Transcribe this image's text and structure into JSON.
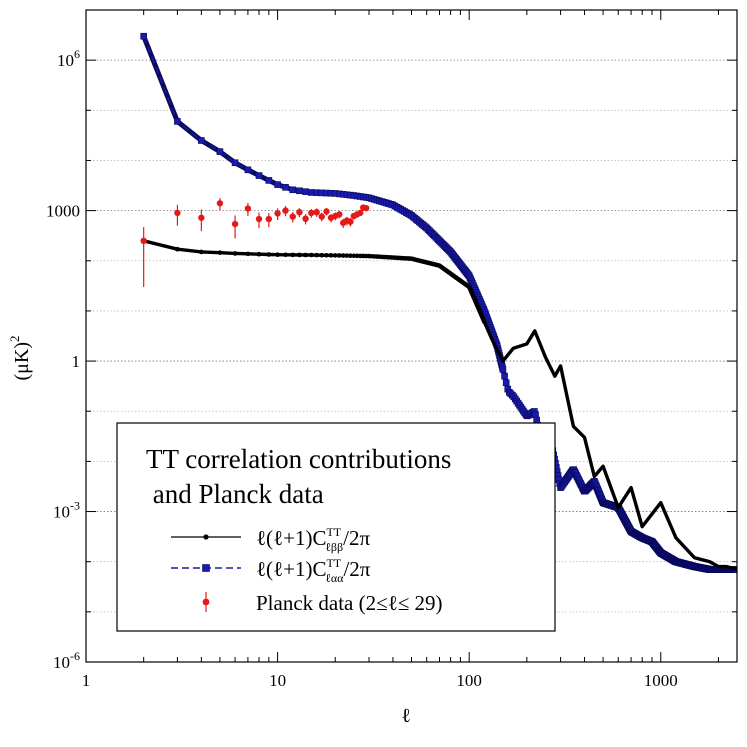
{
  "chart_data": {
    "type": "line",
    "xscale": "log",
    "yscale": "log",
    "xlim": [
      1,
      2500
    ],
    "ylim": [
      1e-06,
      10000000
    ],
    "xlabel": "ℓ",
    "ylabel": "(μK)²",
    "ylabel_base": "(μK)",
    "ylabel_exp": "2",
    "grid": "horizontal dotted",
    "legend_placement": "lower-left",
    "xticks": [
      {
        "value": 1,
        "label": "1"
      },
      {
        "value": 10,
        "label": "10"
      },
      {
        "value": 100,
        "label": "100"
      },
      {
        "value": 1000,
        "label": "1000"
      }
    ],
    "yticks": [
      {
        "value": 1e-06,
        "base": "10",
        "exp": "-6"
      },
      {
        "value": 0.001,
        "base": "10",
        "exp": "-3"
      },
      {
        "value": 1,
        "base": "1",
        "exp": ""
      },
      {
        "value": 1000,
        "base": "1000",
        "exp": ""
      },
      {
        "value": 1000000,
        "base": "10",
        "exp": "6"
      }
    ],
    "legend": {
      "title_line1": "TT correlation contributions",
      "title_line2": " and Planck data",
      "entries": [
        {
          "prefix": "ℓ(ℓ+1)C",
          "sup": "TT",
          "sub": "ℓββ",
          "suffix": "/2π"
        },
        {
          "prefix": "ℓ(ℓ+1)C",
          "sup": "TT",
          "sub": "ℓαα",
          "suffix": "/2π"
        },
        {
          "text": "Planck data (2≤ℓ≤ 29)"
        }
      ]
    },
    "series": [
      {
        "name": "ℓ(ℓ+1)C^TT_ℓββ/2π",
        "color": "#000000",
        "style": "solid-small-dots",
        "x": [
          2,
          3,
          4,
          5,
          6,
          8,
          10,
          15,
          20,
          30,
          50,
          70,
          100,
          130,
          150,
          170,
          200,
          220,
          250,
          280,
          300,
          350,
          400,
          450,
          500,
          600,
          700,
          800,
          1000,
          1200,
          1500,
          1800,
          2000,
          2200,
          2500
        ],
        "y": [
          250,
          170,
          150,
          145,
          140,
          135,
          132,
          130,
          128,
          124,
          110,
          80,
          30,
          3.0,
          1.0,
          1.8,
          2.2,
          4.0,
          1.2,
          0.5,
          0.8,
          0.05,
          0.03,
          0.005,
          0.008,
          0.0012,
          0.003,
          0.0005,
          0.0015,
          0.0003,
          0.00012,
          0.0001,
          8e-05,
          8e-05,
          7e-05
        ]
      },
      {
        "name": "ℓ(ℓ+1)C^TT_ℓαα/2π",
        "color": "#1a1ab0",
        "style": "dashed-squares",
        "x": [
          2,
          3,
          4,
          5,
          6,
          7,
          8,
          9,
          10,
          12,
          15,
          20,
          25,
          30,
          40,
          50,
          60,
          80,
          100,
          120,
          140,
          160,
          170,
          200,
          220,
          250,
          270,
          300,
          350,
          400,
          450,
          500,
          600,
          700,
          800,
          900,
          1000,
          1200,
          1500,
          1800,
          2000,
          2200,
          2500
        ],
        "y": [
          3000000,
          60000,
          25000,
          15000,
          9000,
          6500,
          5000,
          4000,
          3300,
          2600,
          2300,
          2200,
          2000,
          1800,
          1300,
          800,
          450,
          150,
          50,
          10,
          2.0,
          0.25,
          0.2,
          0.08,
          0.1,
          0.01,
          0.02,
          0.003,
          0.007,
          0.0025,
          0.004,
          0.0015,
          0.0012,
          0.0004,
          0.0003,
          0.00025,
          0.00015,
          0.0001,
          8e-05,
          7e-05,
          7e-05,
          7e-05,
          7e-05
        ]
      },
      {
        "name": "Planck data (2≤ℓ≤ 29)",
        "color": "#e41a1a",
        "style": "points-errorbars",
        "x": [
          2,
          3,
          4,
          5,
          6,
          7,
          8,
          9,
          10,
          11,
          12,
          13,
          14,
          15,
          16,
          17,
          18,
          19,
          20,
          21,
          22,
          23,
          24,
          25,
          26,
          27,
          28,
          29
        ],
        "y": [
          250,
          900,
          720,
          1400,
          540,
          1100,
          680,
          680,
          880,
          1000,
          760,
          930,
          690,
          900,
          930,
          760,
          960,
          720,
          780,
          840,
          570,
          630,
          600,
          780,
          840,
          900,
          1150,
          1120
        ],
        "err": [
          220,
          400,
          330,
          380,
          260,
          320,
          230,
          210,
          230,
          230,
          180,
          190,
          160,
          180,
          180,
          150,
          160,
          140,
          140,
          140,
          120,
          120,
          120,
          120,
          120,
          120,
          130,
          130
        ]
      }
    ]
  }
}
